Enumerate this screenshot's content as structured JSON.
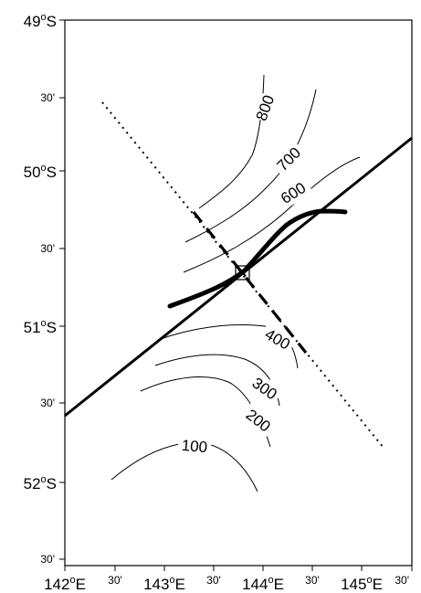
{
  "map": {
    "lon_labels": [
      {
        "deg": "142",
        "suffix": "E",
        "major": true
      },
      {
        "text": "30'",
        "major": false
      },
      {
        "deg": "143",
        "suffix": "E",
        "major": true
      },
      {
        "text": "30'",
        "major": false
      },
      {
        "deg": "144",
        "suffix": "E",
        "major": true
      },
      {
        "text": "30'",
        "major": false
      },
      {
        "deg": "145",
        "suffix": "E",
        "major": true
      },
      {
        "text": "30'",
        "major": false
      }
    ],
    "lat_labels": [
      {
        "deg": "49",
        "suffix": "S",
        "major": true
      },
      {
        "text": "30'",
        "major": false
      },
      {
        "deg": "50",
        "suffix": "S",
        "major": true
      },
      {
        "text": "30'",
        "major": false
      },
      {
        "deg": "51",
        "suffix": "S",
        "major": true
      },
      {
        "text": "30'",
        "major": false
      },
      {
        "deg": "52",
        "suffix": "S",
        "major": true
      },
      {
        "text": "30'",
        "major": false
      }
    ],
    "degree_symbol": "o",
    "lon_range": [
      142,
      145.5
    ],
    "lat_range": [
      -52.5,
      -49
    ],
    "contour_labels": [
      {
        "value": "800"
      },
      {
        "value": "700"
      },
      {
        "value": "600"
      },
      {
        "value": "400"
      },
      {
        "value": "300"
      },
      {
        "value": "200"
      },
      {
        "value": "100"
      }
    ],
    "site_marker": {
      "lon": 143.57,
      "lat": -50.67
    }
  }
}
